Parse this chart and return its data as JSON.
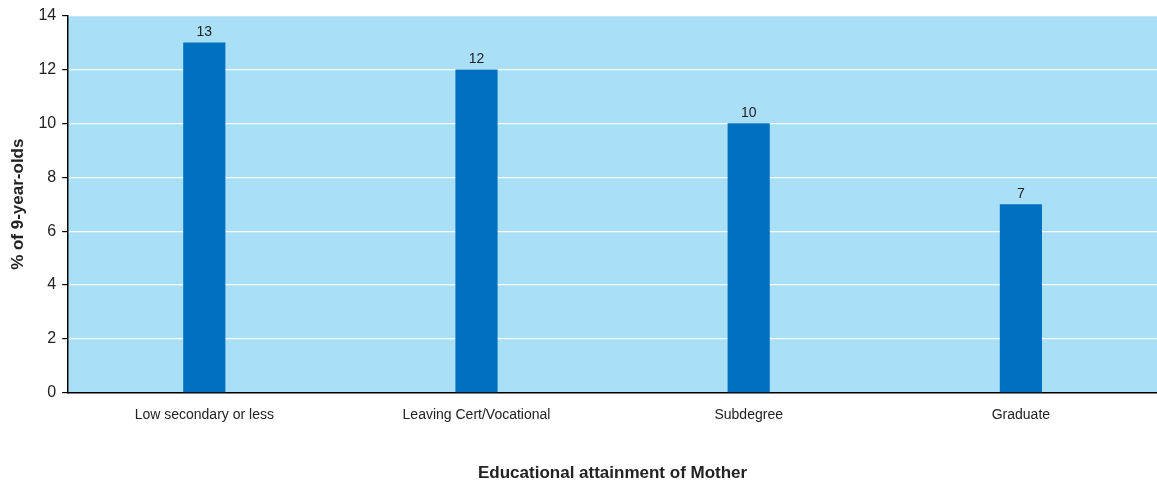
{
  "chart_data": {
    "type": "bar",
    "categories": [
      "Low secondary or less",
      "Leaving Cert/Vocational",
      "Subdegree",
      "Graduate"
    ],
    "values": [
      13,
      12,
      10,
      7
    ],
    "color": "#0070c0",
    "xlabel": "Educational attainment of Mother",
    "ylabel": "% of 9-year-olds",
    "ylim": [
      0,
      14
    ],
    "yticks": [
      0,
      2,
      4,
      6,
      8,
      10,
      12,
      14
    ],
    "grid": "y",
    "data_labels": true,
    "legend": false
  }
}
